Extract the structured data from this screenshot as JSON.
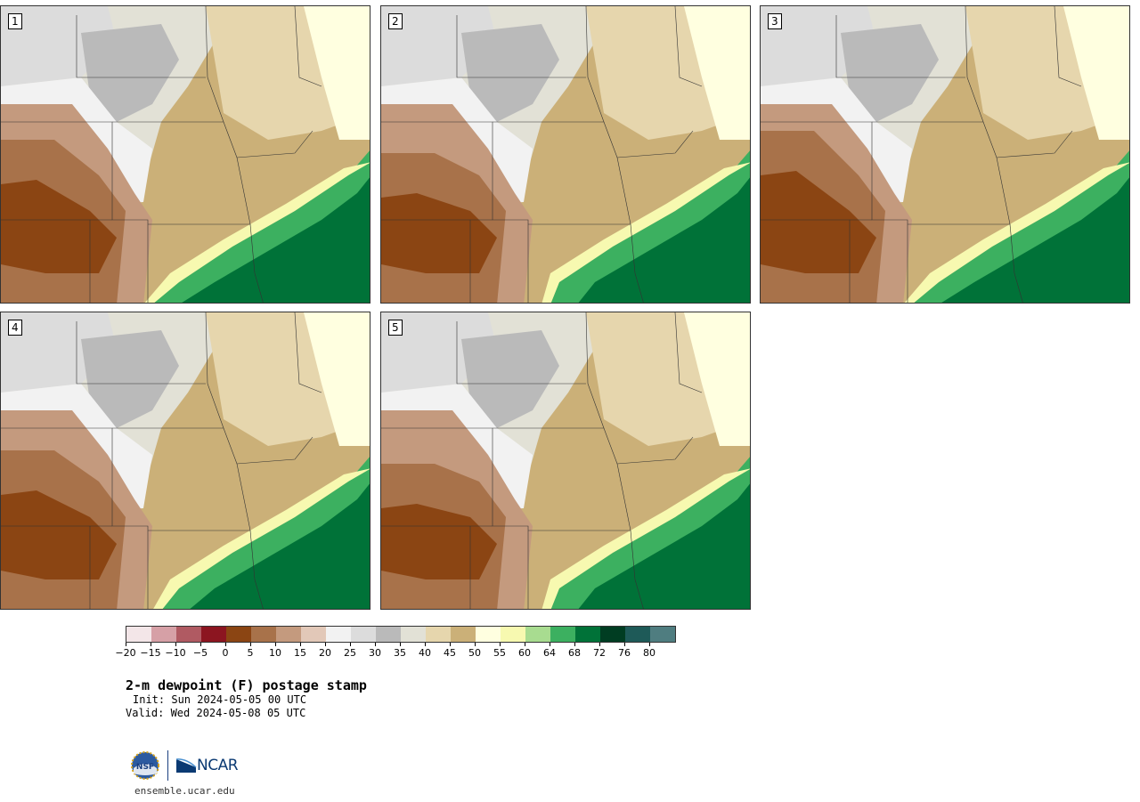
{
  "panels": [
    {
      "label": "1"
    },
    {
      "label": "2"
    },
    {
      "label": "3"
    },
    {
      "label": "4"
    },
    {
      "label": "5"
    }
  ],
  "colorbar": {
    "colors": [
      "#f3e6e8",
      "#d6a0a6",
      "#b05a62",
      "#8c1520",
      "#8b4513",
      "#a8724a",
      "#c49a7e",
      "#e2c8b8",
      "#f2f2f2",
      "#dcdcdc",
      "#bababa",
      "#e2e1d6",
      "#e6d6ad",
      "#cbb078",
      "#ffffe0",
      "#f7f9b0",
      "#a8dc90",
      "#3cb060",
      "#007238",
      "#003d22",
      "#1e5a58",
      "#4f7d80"
    ],
    "ticks": [
      "−20",
      "−15",
      "−10",
      "−5",
      "0",
      "5",
      "10",
      "15",
      "20",
      "25",
      "30",
      "35",
      "40",
      "45",
      "50",
      "55",
      "60",
      "64",
      "68",
      "72",
      "76",
      "80"
    ]
  },
  "title": "2-m dewpoint (F) postage stamp",
  "init": "Init: Sun 2024-05-05 00 UTC",
  "valid": "Valid: Wed 2024-05-08 05 UTC",
  "logos": {
    "nsf": "NSF",
    "ncar": "NCAR"
  },
  "site": "ensemble.ucar.edu"
}
